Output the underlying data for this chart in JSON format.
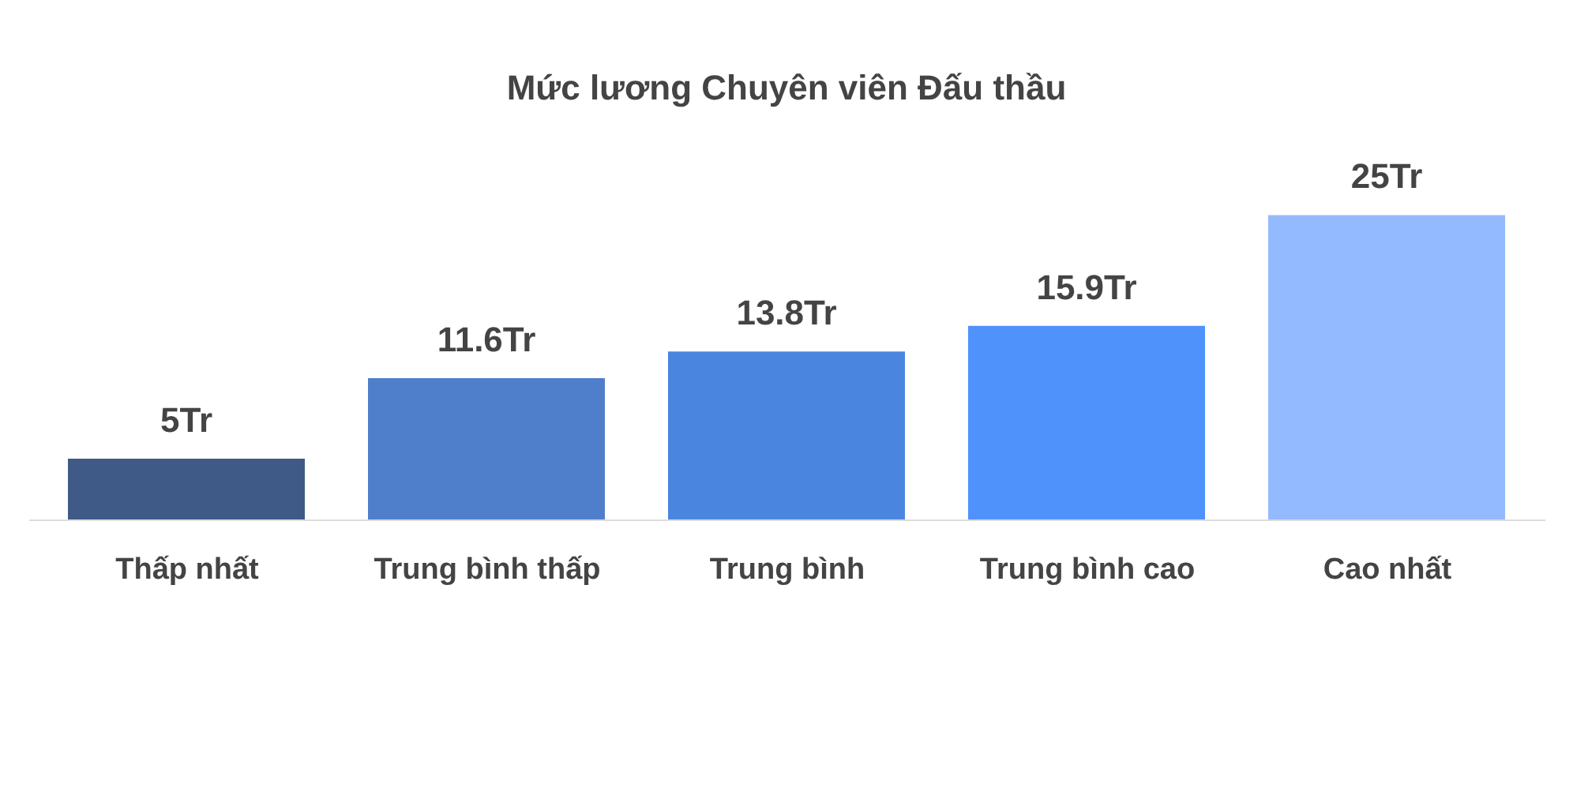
{
  "chart_data": {
    "type": "bar",
    "title": "Mức lương Chuyên viên Đấu thầu",
    "categories": [
      "Thấp nhất",
      "Trung bình thấp",
      "Trung bình",
      "Trung bình cao",
      "Cao nhất"
    ],
    "values": [
      5,
      11.6,
      13.8,
      15.9,
      25
    ],
    "value_labels": [
      "5Tr",
      "11.6Tr",
      "13.8Tr",
      "15.9Tr",
      "25Tr"
    ],
    "colors": [
      "#3f5a87",
      "#4f7fcb",
      "#4a86e0",
      "#4f92fc",
      "#93bafc"
    ],
    "tick_labels": "x",
    "grid": false
  }
}
